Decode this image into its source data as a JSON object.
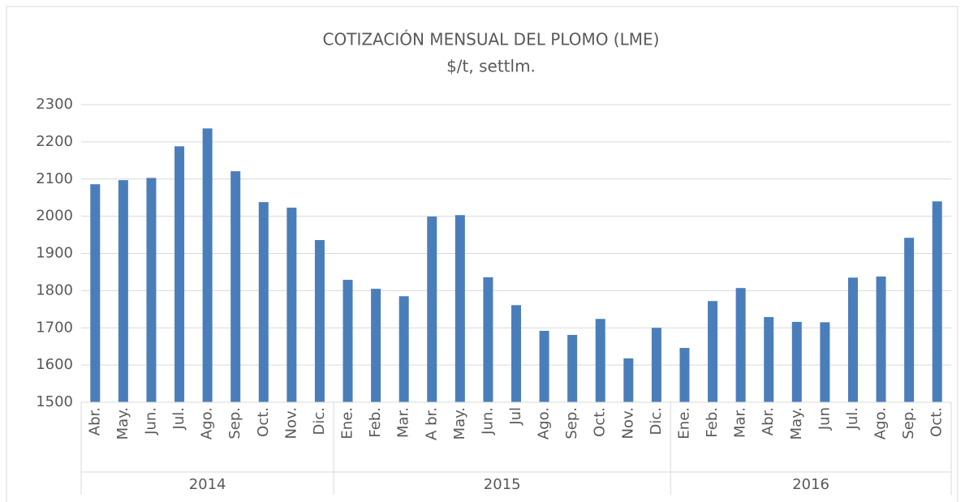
{
  "chart_data": {
    "type": "bar",
    "title": "COTIZACIÓN MENSUAL DEL PLOMO (LME)",
    "subtitle": "$/t, settlm.",
    "category_groups": [
      {
        "name": "2014",
        "categories": [
          "Abr.",
          "May.",
          "Jun.",
          "Jul.",
          "Ago.",
          "Sep.",
          "Oct.",
          "Nov.",
          "Dic."
        ]
      },
      {
        "name": "2015",
        "categories": [
          "Ene.",
          "Feb.",
          "Mar.",
          "A br.",
          "May.",
          "Jun.",
          "Jul",
          "Ago.",
          "Sep.",
          "Oct.",
          "Nov.",
          "Dic."
        ]
      },
      {
        "name": "2016",
        "categories": [
          "Ene.",
          "Feb.",
          "Mar.",
          "Abr.",
          "May.",
          "Jun",
          "Jul.",
          "Ago.",
          "Sep.",
          "Oct."
        ]
      }
    ],
    "values": [
      2086,
      2097,
      2103,
      2188,
      2236,
      2121,
      2038,
      2023,
      1936,
      1829,
      1805,
      1785,
      1999,
      2003,
      1836,
      1761,
      1692,
      1681,
      1724,
      1618,
      1700,
      1646,
      1772,
      1807,
      1729,
      1716,
      1715,
      1835,
      1838,
      1942,
      2040
    ],
    "color": "#4a7ebb",
    "ylim": [
      1500,
      2300
    ],
    "yticks": [
      1500,
      1600,
      1700,
      1800,
      1900,
      2000,
      2100,
      2200,
      2300
    ],
    "grid": true
  }
}
